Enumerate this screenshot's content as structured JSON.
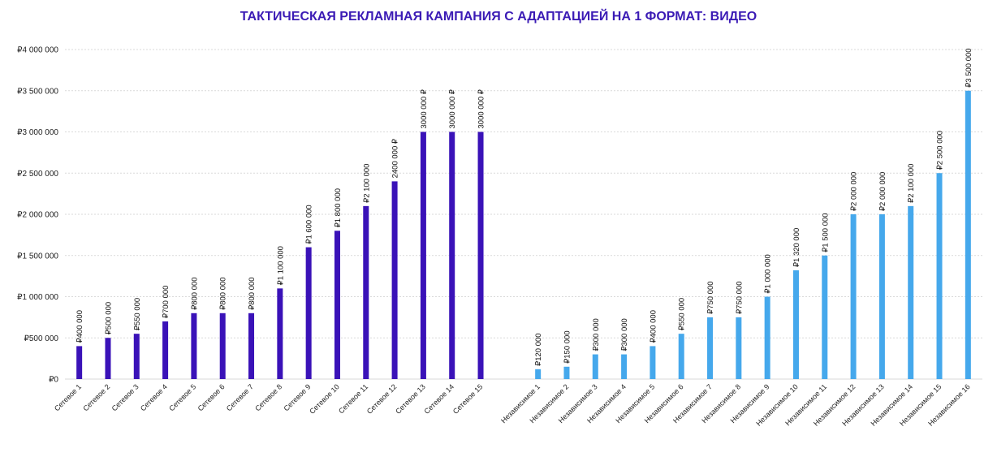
{
  "chart_data": {
    "type": "bar",
    "title": "ТАКТИЧЕСКАЯ РЕКЛАМНАЯ КАМПАНИЯ С АДАПТАЦИЕЙ НА 1 ФОРМАТ: ВИДЕО",
    "title_color": "#3b1bb5",
    "xlabel": "",
    "ylabel": "",
    "ylim": [
      0,
      4000000
    ],
    "y_ticks": [
      "₽0",
      "₽500 000",
      "₽1 000 000",
      "₽1 500 000",
      "₽2 000 000",
      "₽2 500 000",
      "₽3 000 000",
      "₽3 500 000",
      "₽4 000 000"
    ],
    "grid": "horizontal dotted",
    "legend": "none",
    "categories": [
      "Сетевое 1",
      "Сетевое 2",
      "Сетевое 3",
      "Сетевое 4",
      "Сетевое 5",
      "Сетевое 6",
      "Сетевое 7",
      "Сетевое 8",
      "Сетевое 9",
      "Сетевое 10",
      "Сетевое 11",
      "Сетевое 12",
      "Сетевое 13",
      "Сетевое 14",
      "Сетевое 15",
      "",
      "Независимое 1",
      "Независимое 2",
      "Независимое 3",
      "Независимое 4",
      "Независимое 5",
      "Независимое 6",
      "Независимое 7",
      "Независимое 8",
      "Независимое 9",
      "Независимое 10",
      "Независимое 11",
      "Независимое 12",
      "Независимое 13",
      "Независимое 14",
      "Независимое 15",
      "Независимое 16"
    ],
    "values": [
      400000,
      500000,
      550000,
      700000,
      800000,
      800000,
      800000,
      1100000,
      1600000,
      1800000,
      2100000,
      2400000,
      3000000,
      3000000,
      3000000,
      null,
      120000,
      150000,
      300000,
      300000,
      400000,
      550000,
      750000,
      750000,
      1000000,
      1320000,
      1500000,
      2000000,
      2000000,
      2100000,
      2500000,
      3500000
    ],
    "data_labels": [
      "₽400 000",
      "₽500 000",
      "₽550 000",
      "₽700 000",
      "₽800 000",
      "₽800 000",
      "₽800 000",
      "₽1 100 000",
      "₽1 600 000",
      "₽1 800 000",
      "₽2 100 000",
      "2400 000 ₽",
      "3000 000 ₽",
      "3000 000 ₽",
      "3000 000 ₽",
      "",
      "₽120 000",
      "₽150 000",
      "₽300 000",
      "₽300 000",
      "₽400 000",
      "₽550 000",
      "₽750 000",
      "₽750 000",
      "₽1 000 000",
      "₽1 320 000",
      "₽1 500 000",
      "₽2 000 000",
      "₽2 000 000",
      "₽2 100 000",
      "₽2 500 000",
      "₽3 500 000"
    ],
    "colors": [
      "#3a12b8",
      "#3a12b8",
      "#3a12b8",
      "#3a12b8",
      "#3a12b8",
      "#3a12b8",
      "#3a12b8",
      "#3a12b8",
      "#3a12b8",
      "#3a12b8",
      "#3a12b8",
      "#3a12b8",
      "#3a12b8",
      "#3a12b8",
      "#3a12b8",
      "",
      "#45a8ec",
      "#45a8ec",
      "#45a8ec",
      "#45a8ec",
      "#45a8ec",
      "#45a8ec",
      "#45a8ec",
      "#45a8ec",
      "#45a8ec",
      "#45a8ec",
      "#45a8ec",
      "#45a8ec",
      "#45a8ec",
      "#45a8ec",
      "#45a8ec",
      "#45a8ec"
    ],
    "grid_color": "#d9d9d9"
  }
}
